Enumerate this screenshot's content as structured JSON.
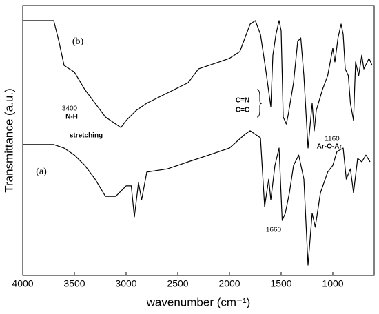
{
  "chart_data": {
    "type": "line",
    "xlabel": "wavenumber (cm⁻¹)",
    "ylabel": "Transmittance (a.u.)",
    "xlim": [
      4000,
      600
    ],
    "ylim": [
      0,
      100
    ],
    "xticks": [
      4000,
      3500,
      3000,
      2500,
      2000,
      1500,
      1000
    ],
    "series": [
      {
        "name": "(b)",
        "color": "#000000",
        "x": [
          4000,
          3700,
          3650,
          3600,
          3500,
          3400,
          3300,
          3200,
          3100,
          3050,
          3000,
          2900,
          2800,
          2600,
          2400,
          2300,
          2100,
          2000,
          1900,
          1800,
          1750,
          1700,
          1650,
          1600,
          1580,
          1550,
          1520,
          1500,
          1480,
          1450,
          1430,
          1380,
          1340,
          1310,
          1280,
          1240,
          1200,
          1180,
          1160,
          1100,
          1050,
          1000,
          980,
          950,
          920,
          900,
          880,
          850,
          830,
          800,
          780,
          750,
          720,
          700,
          650,
          620
        ],
        "values": [
          94.4,
          94.4,
          86.7,
          77.8,
          75.3,
          68.9,
          63.8,
          58.7,
          56.1,
          54.8,
          57.4,
          61.2,
          63.8,
          67.6,
          71.4,
          76.5,
          79.1,
          80.4,
          82.9,
          93.1,
          94.4,
          89.3,
          76.5,
          62.5,
          81.6,
          89.3,
          94.4,
          90.6,
          58.7,
          56.1,
          59.9,
          71.4,
          86.7,
          88.0,
          74.0,
          47.2,
          63.8,
          53.6,
          61.2,
          68.9,
          74.0,
          84.2,
          79.1,
          88.0,
          93.1,
          89.3,
          76.5,
          74.0,
          63.8,
          57.4,
          79.1,
          74.0,
          81.6,
          76.5,
          80.4,
          77.8
        ]
      },
      {
        "name": "(a)",
        "color": "#000000",
        "x": [
          4000,
          3700,
          3600,
          3500,
          3400,
          3300,
          3200,
          3100,
          3000,
          2950,
          2920,
          2880,
          2850,
          2800,
          2600,
          2400,
          2200,
          2000,
          1850,
          1800,
          1700,
          1660,
          1620,
          1600,
          1560,
          1520,
          1490,
          1460,
          1420,
          1380,
          1330,
          1280,
          1240,
          1200,
          1170,
          1120,
          1050,
          1000,
          960,
          900,
          870,
          830,
          800,
          760,
          720,
          680,
          640
        ],
        "values": [
          48.5,
          48.5,
          47.2,
          44.6,
          40.8,
          35.7,
          29.3,
          29.3,
          33.2,
          33.2,
          21.7,
          34.4,
          28.0,
          38.3,
          39.5,
          42.1,
          44.6,
          47.2,
          52.3,
          53.6,
          51.0,
          25.5,
          35.7,
          28.0,
          40.8,
          47.2,
          20.4,
          23.0,
          30.6,
          40.8,
          44.6,
          35.7,
          3.8,
          23.0,
          17.9,
          30.6,
          38.3,
          40.8,
          45.9,
          47.2,
          35.7,
          39.5,
          30.6,
          43.4,
          42.1,
          44.6,
          42.1
        ]
      }
    ],
    "annotations": [
      "(b)",
      "(a)",
      "3400",
      "N-H",
      "stretching",
      "C=N",
      "C=C",
      "1660",
      "1160",
      "Ar-O-Ar"
    ]
  }
}
